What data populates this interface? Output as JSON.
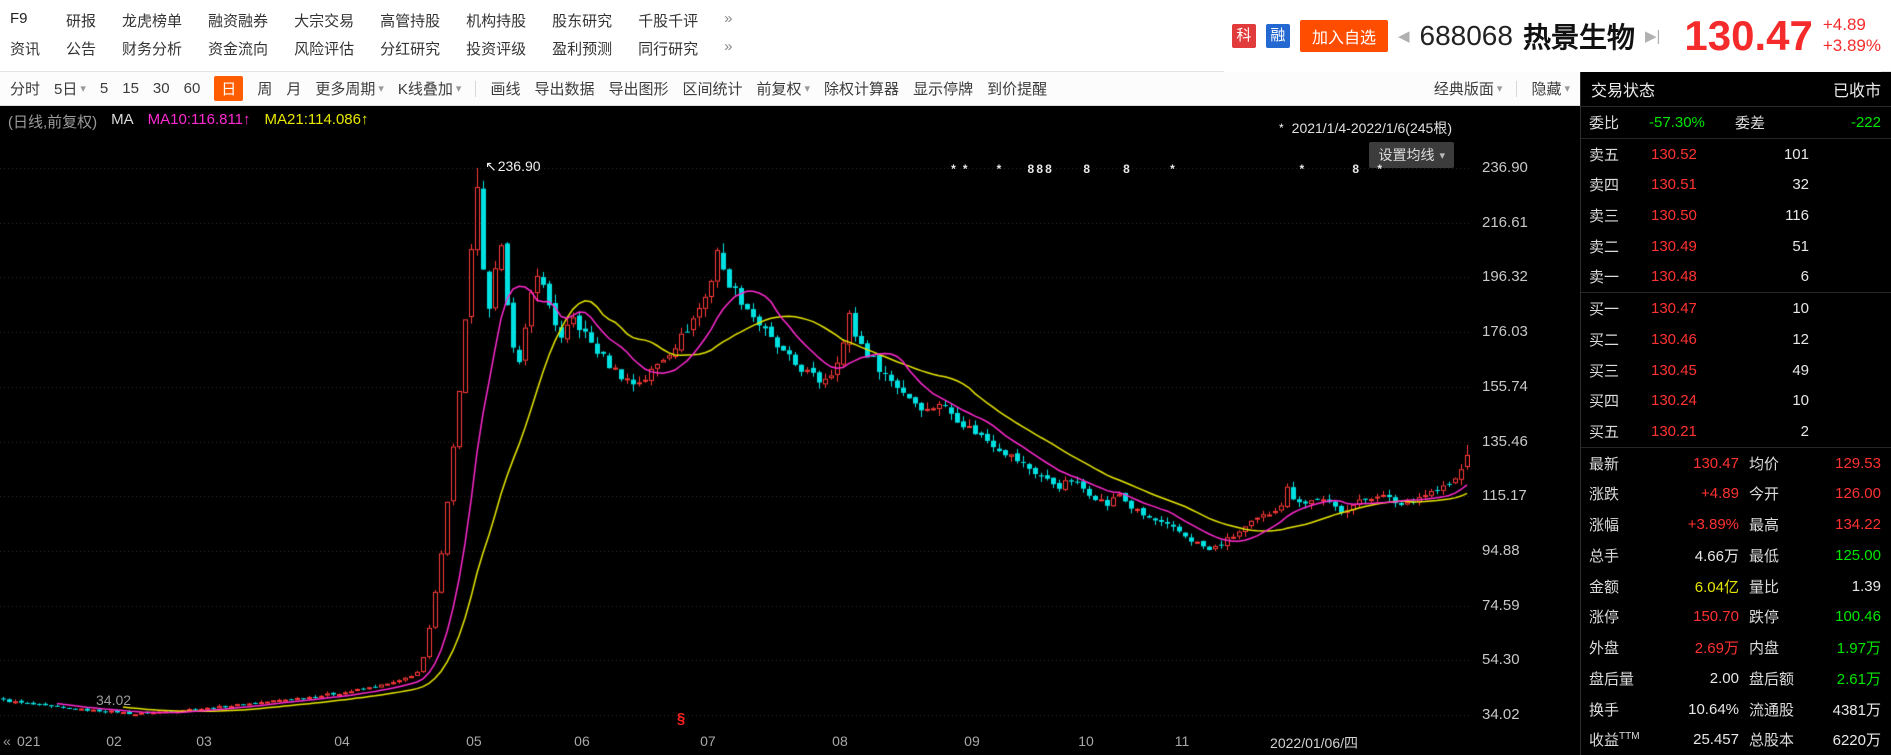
{
  "header": {
    "f9": "F9",
    "menu_row1": [
      "研报",
      "龙虎榜单",
      "融资融券",
      "大宗交易",
      "高管持股",
      "机构持股",
      "股东研究",
      "千股千评"
    ],
    "menu_row2": [
      "资讯",
      "公告",
      "财务分析",
      "资金流向",
      "风险评估",
      "分红研究",
      "投资评级",
      "盈利预测",
      "同行研究"
    ],
    "more": "»",
    "badge_sci": "科",
    "badge_margin": "融",
    "add_watchlist": "加入自选",
    "prev_arrow": "◀",
    "next_arrow": "▶|",
    "stock_code": "688068",
    "stock_name": "热景生物",
    "price": "130.47",
    "change": "+4.89",
    "change_pct": "+3.89%",
    "accent": {
      "sci_bg": "#e23b3b",
      "margin_bg": "#2468d2",
      "watch_bg": "#ff4d00",
      "price_red": "#f52b2b",
      "select_bg": "#ff5d00"
    }
  },
  "toolbar": {
    "items": [
      {
        "label": "分时"
      },
      {
        "label": "5日",
        "dd": true
      },
      {
        "label": "5"
      },
      {
        "label": "15"
      },
      {
        "label": "30"
      },
      {
        "label": "60"
      },
      {
        "label": "日",
        "selected": true
      },
      {
        "label": "周"
      },
      {
        "label": "月"
      },
      {
        "label": "更多周期",
        "dd": true
      },
      {
        "label": "K线叠加",
        "dd": true
      },
      {
        "sep": true
      },
      {
        "label": "画线"
      },
      {
        "label": "导出数据"
      },
      {
        "label": "导出图形"
      },
      {
        "label": "区间统计"
      },
      {
        "label": "前复权",
        "dd": true
      },
      {
        "label": "除权计算器"
      },
      {
        "label": "显示停牌"
      },
      {
        "label": "到价提醒"
      }
    ],
    "right_items": [
      {
        "label": "经典版面",
        "dd": true
      },
      {
        "sep": true
      },
      {
        "label": "隐藏",
        "dd": true
      }
    ]
  },
  "chart": {
    "legend_title": "(日线,前复权)",
    "ma_label": "MA",
    "ma10_label": "MA10:116.811↑",
    "ma21_label": "MA21:114.086↑",
    "range_icon": "*",
    "range_label": "2021/1/4-2022/1/6(245根)",
    "ma_settings_label": "设置均线",
    "dd_icon": "▾",
    "peak_arrow": "↖",
    "peak_label": "236.90",
    "low_label": "34.02",
    "section_mark": "§",
    "x_prefix": "«",
    "markers": [
      {
        "f": 0.647,
        "g": "*"
      },
      {
        "f": 0.655,
        "g": "*"
      },
      {
        "f": 0.678,
        "g": "*"
      },
      {
        "f": 0.699,
        "g": "8"
      },
      {
        "f": 0.705,
        "g": "8"
      },
      {
        "f": 0.711,
        "g": "8"
      },
      {
        "f": 0.737,
        "g": "8"
      },
      {
        "f": 0.764,
        "g": "8"
      },
      {
        "f": 0.796,
        "g": "*"
      },
      {
        "f": 0.884,
        "g": "*"
      },
      {
        "f": 0.92,
        "g": "8"
      },
      {
        "f": 0.937,
        "g": "*"
      }
    ],
    "colors": {
      "up": "#ff3a3a",
      "down": "#00e1e1",
      "ma10": "#ff2ad2",
      "ma21": "#e8e800",
      "grid": "#2d2d2d",
      "axis_text": "#b4b4b4"
    }
  },
  "chart_data": {
    "type": "candlestick",
    "title": "688068 热景生物 日K线 前复权 2021/1/4-2022/1/6 (245根)",
    "ylim": [
      34.02,
      236.9
    ],
    "y_ticks": [
      "236.90",
      "216.61",
      "196.32",
      "176.03",
      "155.74",
      "135.46",
      "115.17",
      "94.88",
      "74.59",
      "54.30",
      "34.02"
    ],
    "x_labels": [
      {
        "f": 0.0,
        "t": "021"
      },
      {
        "f": 0.0776,
        "t": "02"
      },
      {
        "f": 0.1388,
        "t": "03"
      },
      {
        "f": 0.2327,
        "t": "04"
      },
      {
        "f": 0.3224,
        "t": "05"
      },
      {
        "f": 0.3959,
        "t": "06"
      },
      {
        "f": 0.4816,
        "t": "07"
      },
      {
        "f": 0.5714,
        "t": "08"
      },
      {
        "f": 0.6612,
        "t": "09"
      },
      {
        "f": 0.7388,
        "t": "10"
      },
      {
        "f": 0.8041,
        "t": "11"
      },
      {
        "f": 0.8939,
        "t": "2022/01/06/四"
      }
    ],
    "n_bars": 245,
    "close_keyframes": [
      [
        0,
        39.5
      ],
      [
        4,
        38.2
      ],
      [
        8,
        37.0
      ],
      [
        12,
        36.2
      ],
      [
        16,
        35.6
      ],
      [
        19,
        35.2
      ],
      [
        22,
        34.4
      ],
      [
        26,
        35.2
      ],
      [
        30,
        36.0
      ],
      [
        34,
        36.5
      ],
      [
        40,
        38.0
      ],
      [
        46,
        39.5
      ],
      [
        52,
        41.0
      ],
      [
        57,
        42.5
      ],
      [
        62,
        44.5
      ],
      [
        66,
        46.5
      ],
      [
        69,
        50.0
      ],
      [
        70,
        55.0
      ],
      [
        71,
        66.0
      ],
      [
        72,
        79.0
      ],
      [
        73,
        95.0
      ],
      [
        74,
        114.0
      ],
      [
        75,
        133.0
      ],
      [
        76,
        155.0
      ],
      [
        77,
        180.0
      ],
      [
        78,
        205.0
      ],
      [
        79,
        228.0
      ],
      [
        80,
        200.0
      ],
      [
        81,
        183.0
      ],
      [
        82,
        198.0
      ],
      [
        83,
        206.0
      ],
      [
        84,
        188.0
      ],
      [
        85,
        172.0
      ],
      [
        86,
        164.0
      ],
      [
        87,
        176.0
      ],
      [
        88,
        190.0
      ],
      [
        89,
        199.0
      ],
      [
        91,
        186.0
      ],
      [
        93,
        173.0
      ],
      [
        95,
        181.0
      ],
      [
        97,
        175.0
      ],
      [
        99,
        169.0
      ],
      [
        101,
        164.0
      ],
      [
        103,
        160.0
      ],
      [
        105,
        157.0
      ],
      [
        107,
        159.0
      ],
      [
        109,
        164.0
      ],
      [
        111,
        169.0
      ],
      [
        113,
        174.0
      ],
      [
        115,
        181.0
      ],
      [
        117,
        189.0
      ],
      [
        118,
        196.0
      ],
      [
        119,
        207.0
      ],
      [
        120,
        198.0
      ],
      [
        122,
        191.0
      ],
      [
        124,
        185.0
      ],
      [
        126,
        179.0
      ],
      [
        128,
        173.0
      ],
      [
        130,
        168.0
      ],
      [
        132,
        164.0
      ],
      [
        134,
        161.0
      ],
      [
        136,
        158.0
      ],
      [
        138,
        161.0
      ],
      [
        140,
        172.0
      ],
      [
        141,
        182.0
      ],
      [
        142,
        175.0
      ],
      [
        144,
        168.0
      ],
      [
        146,
        163.0
      ],
      [
        148,
        158.0
      ],
      [
        150,
        154.0
      ],
      [
        152,
        150.0
      ],
      [
        154,
        147.0
      ],
      [
        156,
        150.0
      ],
      [
        158,
        146.0
      ],
      [
        160,
        142.0
      ],
      [
        162,
        139.0
      ],
      [
        164,
        136.0
      ],
      [
        166,
        133.0
      ],
      [
        168,
        130.0
      ],
      [
        170,
        127.0
      ],
      [
        172,
        124.0
      ],
      [
        174,
        121.0
      ],
      [
        176,
        119.0
      ],
      [
        178,
        121.0
      ],
      [
        180,
        118.0
      ],
      [
        182,
        115.0
      ],
      [
        184,
        112.0
      ],
      [
        186,
        116.0
      ],
      [
        188,
        111.0
      ],
      [
        190,
        108.0
      ],
      [
        192,
        106.0
      ],
      [
        194,
        104.0
      ],
      [
        196,
        102.0
      ],
      [
        198,
        99.0
      ],
      [
        200,
        96.5
      ],
      [
        201,
        95.0
      ],
      [
        203,
        97.5
      ],
      [
        205,
        100.5
      ],
      [
        207,
        103.5
      ],
      [
        209,
        106.5
      ],
      [
        211,
        109.0
      ],
      [
        213,
        112.5
      ],
      [
        214,
        118.0
      ],
      [
        215,
        115.0
      ],
      [
        217,
        112.5
      ],
      [
        219,
        114.5
      ],
      [
        221,
        112.0
      ],
      [
        223,
        110.0
      ],
      [
        225,
        112.0
      ],
      [
        227,
        114.0
      ],
      [
        229,
        116.0
      ],
      [
        231,
        114.0
      ],
      [
        233,
        112.0
      ],
      [
        235,
        114.0
      ],
      [
        237,
        116.0
      ],
      [
        239,
        117.5
      ],
      [
        241,
        119.5
      ],
      [
        242,
        121.5
      ],
      [
        243,
        125.0
      ],
      [
        244,
        130.47
      ]
    ],
    "last_bar": {
      "open": 126.0,
      "high": 134.22,
      "low": 125.0,
      "close": 130.47
    },
    "peak": {
      "day": 79,
      "high": 236.9
    },
    "trough": {
      "day": 22,
      "low": 34.02
    },
    "ma10_last": 116.811,
    "ma21_last": 114.086
  },
  "quote_panel": {
    "status_label": "交易状态",
    "status_value": "已收市",
    "weibi": {
      "label": "委比",
      "value": "-57.30%",
      "label2": "委差",
      "value2": "-222"
    },
    "asks": [
      {
        "label": "卖五",
        "price": "130.52",
        "vol": "101"
      },
      {
        "label": "卖四",
        "price": "130.51",
        "vol": "32"
      },
      {
        "label": "卖三",
        "price": "130.50",
        "vol": "116"
      },
      {
        "label": "卖二",
        "price": "130.49",
        "vol": "51"
      },
      {
        "label": "卖一",
        "price": "130.48",
        "vol": "6"
      }
    ],
    "bids": [
      {
        "label": "买一",
        "price": "130.47",
        "vol": "10"
      },
      {
        "label": "买二",
        "price": "130.46",
        "vol": "12"
      },
      {
        "label": "买三",
        "price": "130.45",
        "vol": "49"
      },
      {
        "label": "买四",
        "price": "130.24",
        "vol": "10"
      },
      {
        "label": "买五",
        "price": "130.21",
        "vol": "2"
      }
    ],
    "details": [
      {
        "l1": "最新",
        "v1": "130.47",
        "c1": "red",
        "l2": "均价",
        "v2": "129.53",
        "c2": "red"
      },
      {
        "l1": "涨跌",
        "v1": "+4.89",
        "c1": "red",
        "l2": "今开",
        "v2": "126.00",
        "c2": "red"
      },
      {
        "l1": "涨幅",
        "v1": "+3.89%",
        "c1": "red",
        "l2": "最高",
        "v2": "134.22",
        "c2": "red"
      },
      {
        "l1": "总手",
        "v1": "4.66万",
        "c1": "white",
        "l2": "最低",
        "v2": "125.00",
        "c2": "green"
      },
      {
        "l1": "金额",
        "v1": "6.04亿",
        "c1": "yellow",
        "l2": "量比",
        "v2": "1.39",
        "c2": "white"
      },
      {
        "l1": "涨停",
        "v1": "150.70",
        "c1": "red",
        "l2": "跌停",
        "v2": "100.46",
        "c2": "green"
      },
      {
        "l1": "外盘",
        "v1": "2.69万",
        "c1": "red",
        "l2": "内盘",
        "v2": "1.97万",
        "c2": "green"
      },
      {
        "l1": "盘后量",
        "v1": "2.00",
        "c1": "white",
        "l2": "盘后额",
        "v2": "2.61万",
        "c2": "green"
      },
      {
        "l1": "换手",
        "v1": "10.64%",
        "c1": "white",
        "l2": "流通股",
        "v2": "4381万",
        "c2": "white"
      },
      {
        "l1": "收益",
        "sup1": "TTM",
        "v1": "25.457",
        "c1": "white",
        "l2": "总股本",
        "v2": "6220万",
        "c2": "white"
      }
    ],
    "colors": {
      "red": "#ff3232",
      "green": "#00e600",
      "yellow": "#e6e600",
      "white": "#e8e8e8"
    }
  }
}
